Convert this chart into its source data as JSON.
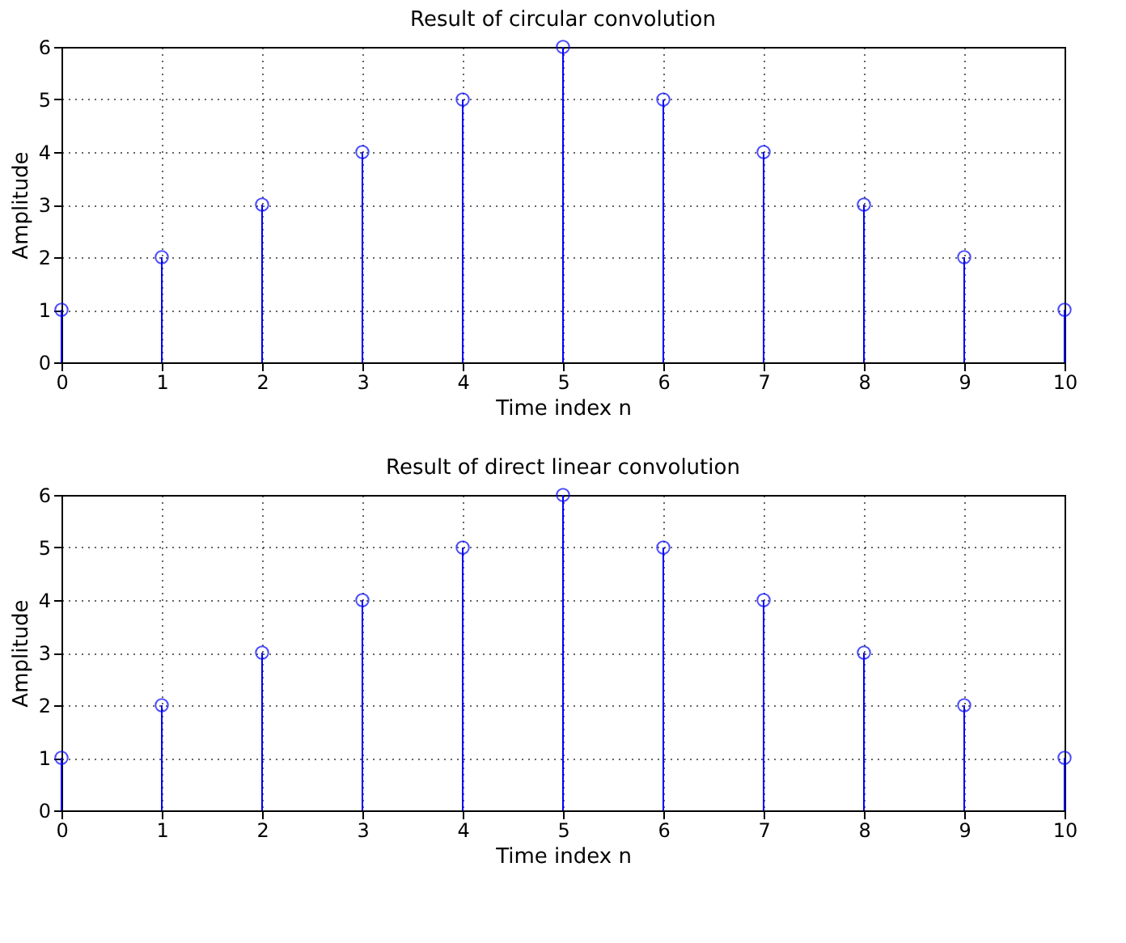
{
  "chart_data": [
    {
      "type": "lollipop",
      "title": "Result of circular convolution",
      "xlabel": "Time index n",
      "ylabel": "Amplitude",
      "x": [
        0,
        1,
        2,
        3,
        4,
        5,
        6,
        7,
        8,
        9,
        10
      ],
      "series": [
        {
          "color": "#0000ff",
          "values": [
            1,
            2,
            3,
            4,
            5,
            6,
            5,
            4,
            3,
            2,
            1
          ]
        }
      ],
      "xlim": [
        0,
        10
      ],
      "xticks": [
        0,
        1,
        2,
        3,
        4,
        5,
        6,
        7,
        8,
        9,
        10
      ],
      "ylim": [
        0,
        6
      ],
      "yticks": [
        0,
        1,
        2,
        3,
        4,
        5,
        6
      ],
      "grid": true,
      "marker": "circle"
    },
    {
      "type": "lollipop",
      "title": "Result of direct linear convolution",
      "xlabel": "Time index n",
      "ylabel": "Amplitude",
      "x": [
        0,
        1,
        2,
        3,
        4,
        5,
        6,
        7,
        8,
        9,
        10
      ],
      "series": [
        {
          "color": "#0000ff",
          "values": [
            1,
            2,
            3,
            4,
            5,
            6,
            5,
            4,
            3,
            2,
            1
          ]
        }
      ],
      "xlim": [
        0,
        10
      ],
      "xticks": [
        0,
        1,
        2,
        3,
        4,
        5,
        6,
        7,
        8,
        9,
        10
      ],
      "ylim": [
        0,
        6
      ],
      "yticks": [
        0,
        1,
        2,
        3,
        4,
        5,
        6
      ],
      "grid": true,
      "marker": "circle"
    }
  ]
}
